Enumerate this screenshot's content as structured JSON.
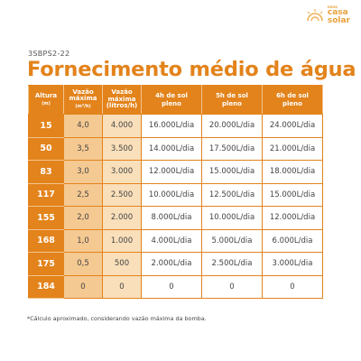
{
  "brand": {
    "small": "nova",
    "name_line1": "casa",
    "name_line2": "solar",
    "accent": "#e3831b"
  },
  "code": "3SBPS2-22",
  "title": "Fornecimento médio de água",
  "table": {
    "headers": {
      "altura": "Altura",
      "altura_unit": "(m)",
      "vazao_m3_line1": "Vazão",
      "vazao_m3_line2": "máxima",
      "vazao_m3_unit": "(m³/h)",
      "vazao_l_line1": "Vazão",
      "vazao_l_line2": "máxima",
      "vazao_l_unit": "(litros/h)",
      "h4_line1": "4h de sol",
      "h4_line2": "pleno",
      "h5_line1": "5h de sol",
      "h5_line2": "pleno",
      "h6_line1": "6h de sol",
      "h6_line2": "pleno"
    },
    "rows": [
      {
        "altura": "15",
        "m3": "4,0",
        "litros": "4.000",
        "h4": "16.000L/dia",
        "h5": "20.000L/dia",
        "h6": "24.000L/dia"
      },
      {
        "altura": "50",
        "m3": "3,5",
        "litros": "3.500",
        "h4": "14.000L/dia",
        "h5": "17.500L/dia",
        "h6": "21.000L/dia"
      },
      {
        "altura": "83",
        "m3": "3,0",
        "litros": "3.000",
        "h4": "12.000L/dia",
        "h5": "15.000L/dia",
        "h6": "18.000L/dia"
      },
      {
        "altura": "117",
        "m3": "2,5",
        "litros": "2.500",
        "h4": "10.000L/dia",
        "h5": "12.500L/dia",
        "h6": "15.000L/dia"
      },
      {
        "altura": "155",
        "m3": "2,0",
        "litros": "2.000",
        "h4": "8.000L/dia",
        "h5": "10.000L/dia",
        "h6": "12.000L/dia"
      },
      {
        "altura": "168",
        "m3": "1,0",
        "litros": "1.000",
        "h4": "4.000L/dia",
        "h5": "5.000L/dia",
        "h6": "6.000L/dia"
      },
      {
        "altura": "175",
        "m3": "0,5",
        "litros": "500",
        "h4": "2.000L/dia",
        "h5": "2.500L/dia",
        "h6": "3.000L/dia"
      },
      {
        "altura": "184",
        "m3": "0",
        "litros": "0",
        "h4": "0",
        "h5": "0",
        "h6": "0"
      }
    ]
  },
  "footnote": "*Cálculo aproximado, considerando vazão máxima da bomba."
}
